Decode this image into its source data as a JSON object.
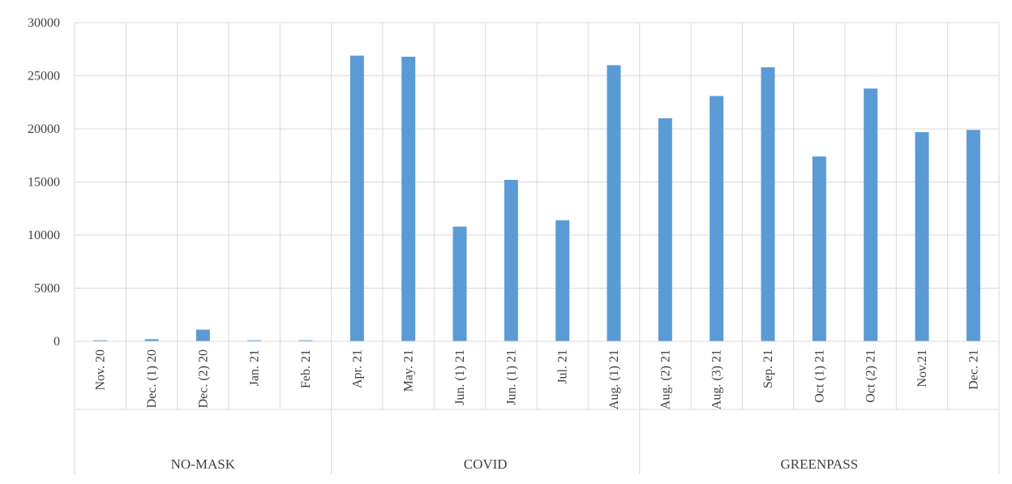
{
  "chart_data": {
    "type": "bar",
    "title": "",
    "xlabel": "",
    "ylabel": "",
    "ylim": [
      0,
      30000
    ],
    "yticks": [
      0,
      5000,
      10000,
      15000,
      20000,
      25000,
      30000
    ],
    "grid": true,
    "legend": "none",
    "bar_color": "#5b9bd5",
    "categories": [
      "Nov. 20",
      "Dec. (1) 20",
      "Dec. (2) 20",
      "Jan. 21",
      "Feb. 21",
      "Apr. 21",
      "May. 21",
      "Jun. (1) 21",
      "Jun. (1) 21",
      "Jul. 21",
      "Aug. (1) 21",
      "Aug. (2) 21",
      "Aug. (3) 21",
      "Sep. 21",
      "Oct (1) 21",
      "Oct (2) 21",
      "Nov.21",
      "Dec. 21"
    ],
    "values": [
      100,
      200,
      1100,
      100,
      100,
      26900,
      26800,
      10800,
      15200,
      11400,
      26000,
      21000,
      23100,
      25800,
      17400,
      23800,
      19700,
      19900
    ],
    "groups": [
      {
        "label": "NO-MASK",
        "start": 0,
        "end": 4
      },
      {
        "label": "COVID",
        "start": 5,
        "end": 10
      },
      {
        "label": "GREENPASS",
        "start": 11,
        "end": 17
      }
    ]
  }
}
